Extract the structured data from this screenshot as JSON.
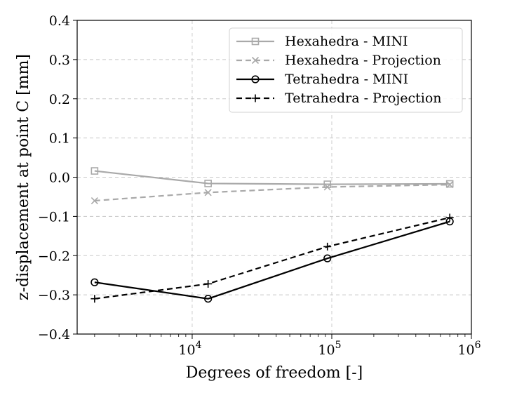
{
  "chart_data": {
    "type": "line",
    "title": "",
    "xlabel": "Degrees of freedom [-]",
    "ylabel": "z-displacement at point C [mm]",
    "xscale": "log",
    "xlim": [
      1500,
      1000000
    ],
    "ylim": [
      -0.4,
      0.4
    ],
    "grid": true,
    "legend_position": "top-right",
    "x_ticks": [
      {
        "value": 10000,
        "base": "10",
        "exp": "4"
      },
      {
        "value": 100000,
        "base": "10",
        "exp": "5"
      },
      {
        "value": 1000000,
        "base": "10",
        "exp": "6"
      }
    ],
    "y_ticks": [
      {
        "value": 0.4,
        "label": "0.4"
      },
      {
        "value": 0.3,
        "label": "0.3"
      },
      {
        "value": 0.2,
        "label": "0.2"
      },
      {
        "value": 0.1,
        "label": "0.1"
      },
      {
        "value": 0.0,
        "label": "0.0"
      },
      {
        "value": -0.1,
        "label": "−0.1"
      },
      {
        "value": -0.2,
        "label": "−0.2"
      },
      {
        "value": -0.3,
        "label": "−0.3"
      },
      {
        "value": -0.4,
        "label": "−0.4"
      }
    ],
    "series": [
      {
        "name": "Hexahedra - MINI",
        "color": "#a9a9a9",
        "dash": "solid",
        "marker": "square",
        "x": [
          2000,
          13000,
          93000,
          700000
        ],
        "y": [
          0.016,
          -0.016,
          -0.018,
          -0.017
        ]
      },
      {
        "name": "Hexahedra - Projection",
        "color": "#a9a9a9",
        "dash": "dashed",
        "marker": "x",
        "x": [
          2000,
          13000,
          93000,
          700000
        ],
        "y": [
          -0.06,
          -0.039,
          -0.025,
          -0.019
        ]
      },
      {
        "name": "Tetrahedra - MINI",
        "color": "#000000",
        "dash": "solid",
        "marker": "circle",
        "x": [
          2000,
          13000,
          93000,
          700000
        ],
        "y": [
          -0.268,
          -0.31,
          -0.207,
          -0.113
        ]
      },
      {
        "name": "Tetrahedra - Projection",
        "color": "#000000",
        "dash": "dashed",
        "marker": "plus",
        "x": [
          2000,
          13000,
          93000,
          700000
        ],
        "y": [
          -0.31,
          -0.272,
          -0.177,
          -0.103
        ]
      }
    ]
  }
}
